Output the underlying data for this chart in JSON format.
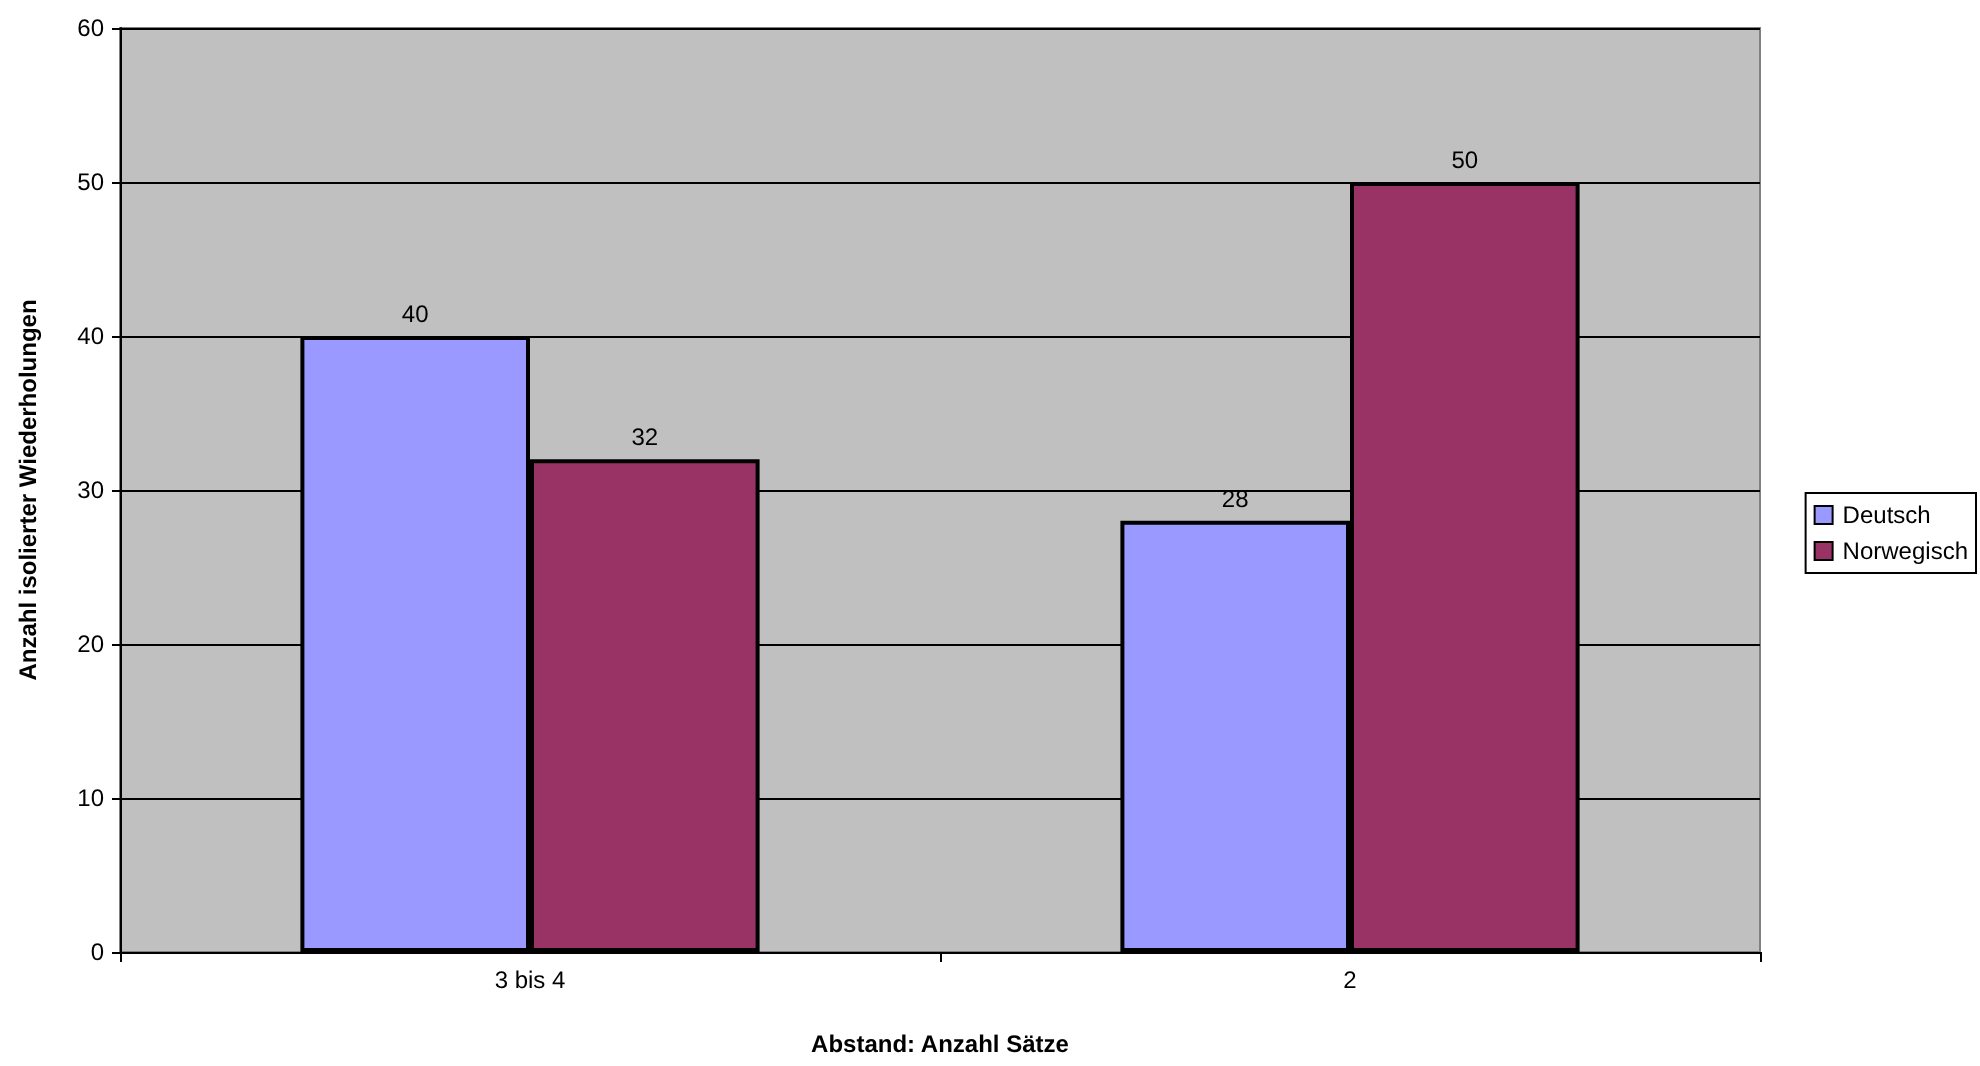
{
  "chart_data": {
    "type": "bar",
    "xlabel": "Abstand: Anzahl Sätze",
    "ylabel": "Anzahl isolierter Wiederholungen",
    "categories": [
      "3 bis 4",
      "2"
    ],
    "series": [
      {
        "name": "Deutsch",
        "color": "#9999ff",
        "values": [
          40,
          28
        ]
      },
      {
        "name": "Norwegisch",
        "color": "#993366",
        "values": [
          32,
          50
        ]
      }
    ],
    "ylim": [
      0,
      60
    ],
    "yticks": [
      0,
      10,
      20,
      30,
      40,
      50,
      60
    ],
    "grid": "y",
    "legend": "right",
    "data_labels": true
  }
}
